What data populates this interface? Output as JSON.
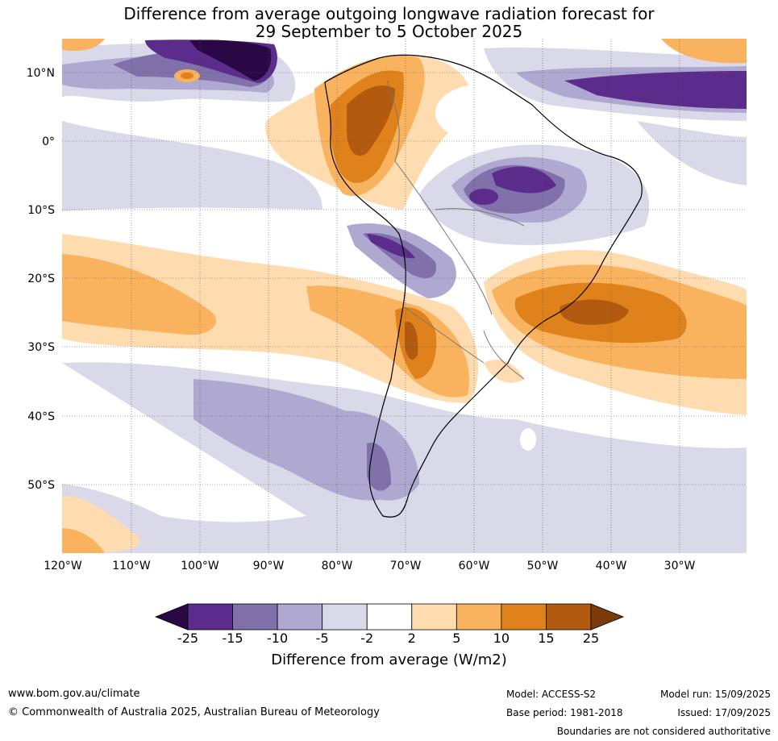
{
  "title_line1": "Difference from average outgoing longwave radiation forecast for",
  "title_line2": "29 September to 5 October 2025",
  "lat_labels": [
    "10°N",
    "0°",
    "10°S",
    "20°S",
    "30°S",
    "40°S",
    "50°S"
  ],
  "lon_labels": [
    "120°W",
    "110°W",
    "100°W",
    "90°W",
    "80°W",
    "70°W",
    "60°W",
    "50°W",
    "40°W",
    "30°W"
  ],
  "colorbar": {
    "title": "Difference from average (W/m2)",
    "ticks": [
      "-25",
      "-15",
      "-10",
      "-5",
      "-2",
      "2",
      "5",
      "10",
      "15",
      "25"
    ],
    "colors": [
      "#2a0845",
      "#5b2c8c",
      "#8171ab",
      "#afa8d0",
      "#d9d9ea",
      "#ffffff",
      "#fedcb0",
      "#f9b35e",
      "#e0821c",
      "#b15a10",
      "#7a3a0a"
    ]
  },
  "footer": {
    "website": "www.bom.gov.au/climate",
    "copyright": "© Commonwealth of Australia 2025, Australian Bureau of Meteorology",
    "model": "Model: ACCESS-S2",
    "base_period": "Base period: 1981-2018",
    "model_run": "Model run: 15/09/2025",
    "issued": "Issued: 17/09/2025",
    "disclaimer": "Boundaries are not considered authoritative"
  }
}
